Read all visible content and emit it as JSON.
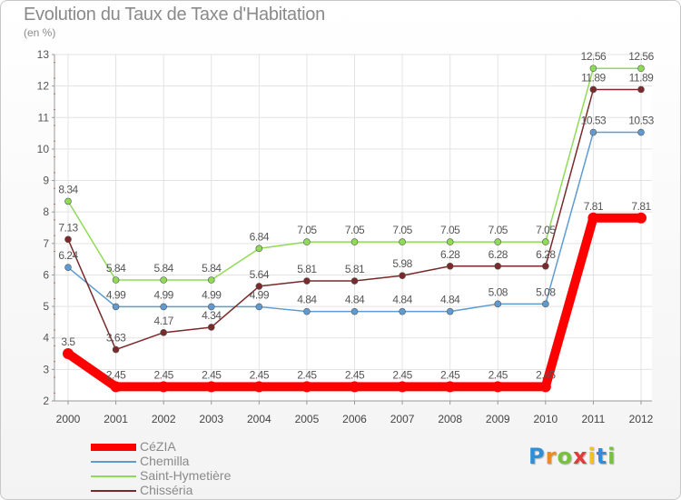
{
  "chart_data": {
    "type": "line",
    "title": "Evolution du Taux de Taxe d'Habitation",
    "ylabel": "(en %)",
    "xlabel": "",
    "x": [
      "2000",
      "2001",
      "2002",
      "2003",
      "2004",
      "2005",
      "2006",
      "2007",
      "2008",
      "2009",
      "2010",
      "2011",
      "2012"
    ],
    "ylim": [
      2,
      13
    ],
    "yticks": [
      "2",
      "3",
      "4",
      "5",
      "6",
      "7",
      "8",
      "9",
      "10",
      "11",
      "12",
      "13"
    ],
    "grid": true,
    "legend_position": "bottom-left",
    "series": [
      {
        "name": "CéZIA",
        "color": "#ff0000",
        "values": [
          3.5,
          2.45,
          2.45,
          2.45,
          2.45,
          2.45,
          2.45,
          2.45,
          2.45,
          2.45,
          2.45,
          7.81,
          7.81
        ],
        "labels": [
          "3.5",
          "2.45",
          "2.45",
          "2.45",
          "2.45",
          "2.45",
          "2.45",
          "2.45",
          "2.45",
          "2.45",
          "2.45",
          "7.81",
          "7.81"
        ]
      },
      {
        "name": "Chemilla",
        "color": "#5f9bd0",
        "values": [
          6.24,
          4.99,
          4.99,
          4.99,
          4.99,
          4.84,
          4.84,
          4.84,
          4.84,
          5.08,
          5.08,
          10.53,
          10.53
        ],
        "labels": [
          "6.24",
          "4.99",
          "4.99",
          "4.99",
          "4.99",
          "4.84",
          "4.84",
          "4.84",
          "4.84",
          "5.08",
          "5.08",
          "10.53",
          "10.53"
        ]
      },
      {
        "name": "Saint-Hymetière",
        "color": "#8fdb57",
        "values": [
          8.34,
          5.84,
          5.84,
          5.84,
          6.84,
          7.05,
          7.05,
          7.05,
          7.05,
          7.05,
          7.05,
          12.56,
          12.56
        ],
        "labels": [
          "8.34",
          "5.84",
          "5.84",
          "5.84",
          "6.84",
          "7.05",
          "7.05",
          "7.05",
          "7.05",
          "7.05",
          "7.05",
          "12.56",
          "12.56"
        ]
      },
      {
        "name": "Chisséria",
        "color": "#7a2a2a",
        "values": [
          7.13,
          3.63,
          4.17,
          4.34,
          5.64,
          5.81,
          5.81,
          5.98,
          6.28,
          6.28,
          6.28,
          11.89,
          11.89
        ],
        "labels": [
          "7.13",
          "3.63",
          "4.17",
          "4.34",
          "5.64",
          "5.81",
          "5.81",
          "5.98",
          "6.28",
          "6.28",
          "6.28",
          "11.89",
          "11.89"
        ]
      }
    ]
  },
  "brand": {
    "letters": [
      "P",
      "r",
      "o",
      "x",
      "i",
      "t",
      "i"
    ],
    "colors": [
      "#2f8fd6",
      "#ef8b1e",
      "#78c13b",
      "#e23b3b",
      "#f1c320",
      "#2f8fd6",
      "#78c13b"
    ]
  }
}
